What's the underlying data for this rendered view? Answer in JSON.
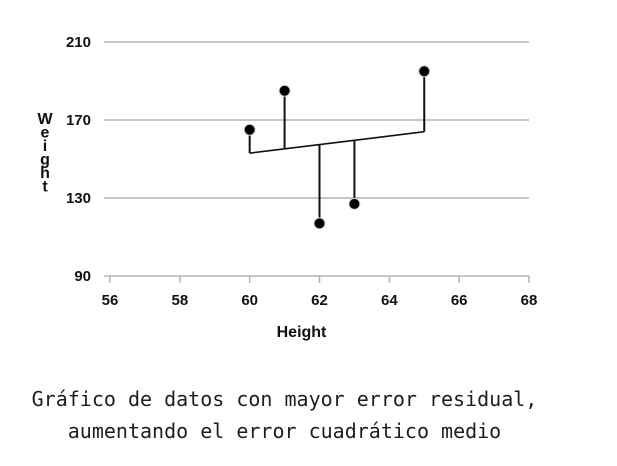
{
  "chart_data": {
    "type": "scatter",
    "xlabel": "Height",
    "ylabel": "Weight",
    "xlim": [
      56,
      68
    ],
    "ylim": [
      90,
      210
    ],
    "xticks": [
      56,
      58,
      60,
      62,
      64,
      66,
      68
    ],
    "yticks": [
      90,
      130,
      170,
      210
    ],
    "grid": "horizontal",
    "points": [
      {
        "x": 60,
        "y": 165
      },
      {
        "x": 61,
        "y": 185
      },
      {
        "x": 62,
        "y": 117
      },
      {
        "x": 63,
        "y": 127
      },
      {
        "x": 65,
        "y": 195
      }
    ],
    "fit_line": {
      "x": [
        60,
        65
      ],
      "y": [
        153,
        164
      ]
    },
    "colors": {
      "points": "#000000",
      "grid": "#b3b3b3",
      "line": "#111111"
    }
  },
  "caption": {
    "line1": "Gráfico de datos con mayor error residual,",
    "line2": "aumentando el error cuadrático medio"
  }
}
